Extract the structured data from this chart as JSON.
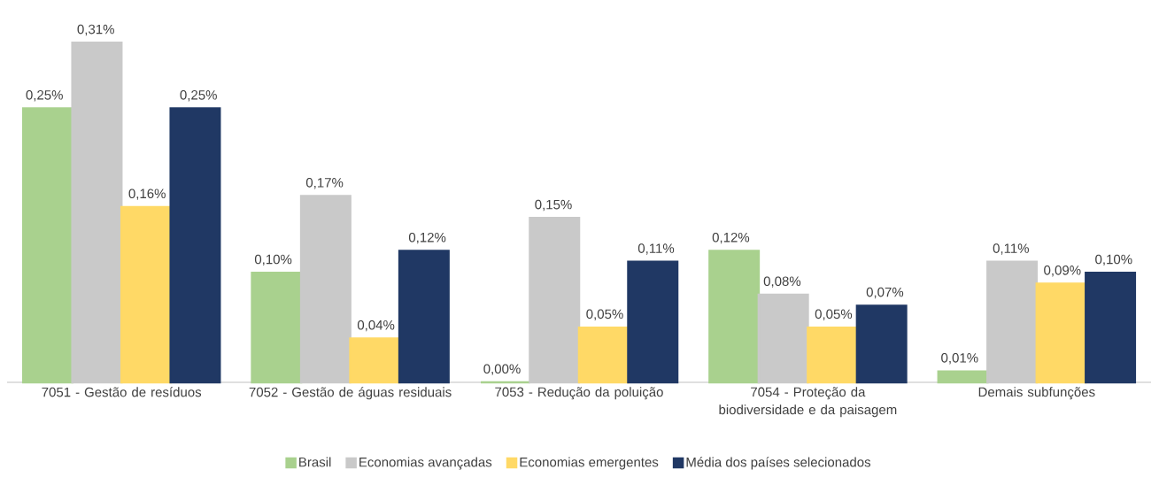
{
  "chart_data": {
    "type": "bar",
    "categories": [
      "7051 - Gestão de resíduos",
      "7052 - Gestão de águas residuais",
      "7053 - Redução da poluição",
      "7054 - Proteção da biodiversidade e da paisagem",
      "Demais subfunções"
    ],
    "legend": "bottom",
    "series": [
      {
        "name": "Brasil",
        "color": "#a9d18e",
        "values": [
          0.25,
          0.1,
          0.0,
          0.12,
          0.01
        ],
        "value_labels": [
          "0,25%",
          "0,10%",
          "0,00%",
          "0,12%",
          "0,01%"
        ]
      },
      {
        "name": "Economias avançadas",
        "color": "#c9c9c9",
        "values": [
          0.31,
          0.17,
          0.15,
          0.08,
          0.11
        ],
        "value_labels": [
          "0,31%",
          "0,17%",
          "0,15%",
          "0,08%",
          "0,11%"
        ]
      },
      {
        "name": "Economias emergentes",
        "color": "#ffd966",
        "values": [
          0.16,
          0.04,
          0.05,
          0.05,
          0.09
        ],
        "value_labels": [
          "0,16%",
          "0,04%",
          "0,05%",
          "0,05%",
          "0,09%"
        ]
      },
      {
        "name": "Média dos países selecionados",
        "color": "#203864",
        "values": [
          0.25,
          0.12,
          0.11,
          0.07,
          0.1
        ],
        "value_labels": [
          "0,25%",
          "0,12%",
          "0,11%",
          "0,07%",
          "0,10%"
        ]
      }
    ]
  }
}
